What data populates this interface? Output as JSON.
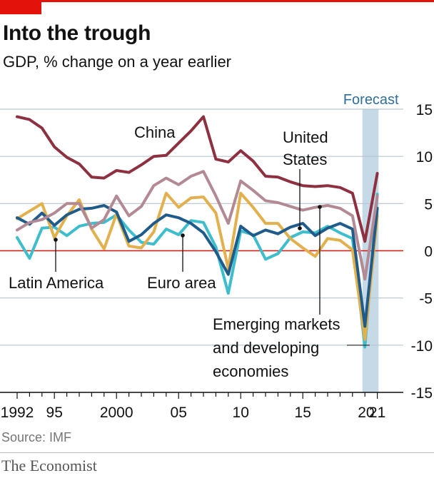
{
  "header": {
    "title": "Into the trough",
    "subtitle_bold": "GDP,",
    "subtitle_rest": " % change on a year earlier"
  },
  "footer": {
    "source": "Source: IMF",
    "brand": "The Economist"
  },
  "colors": {
    "accent": "#e3120b",
    "China": "#8e3040",
    "Emerging markets and developing economies": "#b38a94",
    "United States": "#1f5c8b",
    "Euro area": "#3ebdcd",
    "Latin America": "#e2b04d",
    "forecast_band": "#c5d9e6"
  },
  "chart_data": {
    "type": "line",
    "x": [
      1992,
      1993,
      1994,
      1995,
      1996,
      1997,
      1998,
      1999,
      2000,
      2001,
      2002,
      2003,
      2004,
      2005,
      2006,
      2007,
      2008,
      2009,
      2010,
      2011,
      2012,
      2013,
      2014,
      2015,
      2016,
      2017,
      2018,
      2019,
      2020,
      2021
    ],
    "xlim": [
      1991.5,
      2022.5
    ],
    "ylim": [
      -15,
      15
    ],
    "yticks": [
      15,
      10,
      5,
      0,
      -5,
      -10,
      -15
    ],
    "ytick_labels": [
      "15",
      "10",
      "5",
      "0",
      "-5",
      "-10",
      "-15"
    ],
    "xtick_values": [
      1992,
      1995,
      2000,
      2005,
      2010,
      2015,
      2020.1,
      2021
    ],
    "xtick_labels": [
      "1992",
      "95",
      "2000",
      "05",
      "10",
      "15",
      "20",
      "21"
    ],
    "grid": true,
    "forecast": {
      "label": "Forecast",
      "from": 2019.8,
      "to": 2021.1
    },
    "series": [
      {
        "name": "Euro area",
        "values": [
          1.4,
          -0.8,
          2.4,
          2.5,
          1.6,
          2.6,
          2.9,
          3.0,
          3.8,
          2.2,
          0.9,
          0.7,
          2.3,
          1.7,
          3.2,
          3.0,
          0.4,
          -4.5,
          2.1,
          1.7,
          -0.9,
          -0.3,
          1.4,
          2.0,
          1.9,
          2.6,
          1.9,
          1.3,
          -10.2,
          6.0
        ]
      },
      {
        "name": "Latin America",
        "values": [
          3.4,
          4.2,
          5.0,
          1.4,
          3.7,
          5.4,
          2.3,
          0.2,
          3.9,
          0.5,
          0.3,
          2.0,
          6.1,
          4.6,
          5.6,
          5.7,
          4.0,
          -1.9,
          6.1,
          4.6,
          2.9,
          2.9,
          1.3,
          0.3,
          -0.6,
          1.3,
          1.1,
          0.1,
          -9.4,
          3.7
        ]
      },
      {
        "name": "United States",
        "values": [
          3.5,
          2.8,
          4.0,
          2.7,
          3.8,
          4.4,
          4.5,
          4.8,
          4.1,
          1.0,
          1.7,
          2.9,
          3.8,
          3.5,
          2.9,
          1.9,
          -0.1,
          -2.5,
          2.6,
          1.6,
          2.2,
          1.8,
          2.5,
          2.9,
          1.6,
          2.4,
          2.9,
          2.3,
          -8.0,
          4.5
        ]
      },
      {
        "name": "Emerging markets and developing economies",
        "values": [
          2.2,
          3.0,
          3.3,
          4.0,
          5.0,
          5.0,
          2.4,
          3.3,
          5.8,
          3.7,
          4.7,
          6.9,
          7.7,
          7.0,
          7.9,
          8.4,
          5.8,
          2.9,
          7.4,
          6.4,
          5.3,
          5.1,
          4.7,
          4.3,
          4.6,
          4.8,
          4.5,
          3.7,
          -3.0,
          5.8
        ]
      },
      {
        "name": "China",
        "values": [
          14.2,
          13.9,
          13.0,
          11.0,
          9.9,
          9.2,
          7.8,
          7.7,
          8.5,
          8.3,
          9.1,
          10.0,
          10.1,
          11.4,
          12.7,
          14.2,
          9.7,
          9.4,
          10.6,
          9.5,
          7.9,
          7.8,
          7.3,
          6.9,
          6.8,
          6.9,
          6.7,
          6.1,
          1.0,
          8.2
        ]
      }
    ],
    "annotations": {
      "china": "China",
      "us_line1": "United",
      "us_line2": "States",
      "latam": "Latin America",
      "euro": "Euro area",
      "em_line1": "Emerging markets",
      "em_line2": "and developing",
      "em_line3": "economies"
    }
  }
}
